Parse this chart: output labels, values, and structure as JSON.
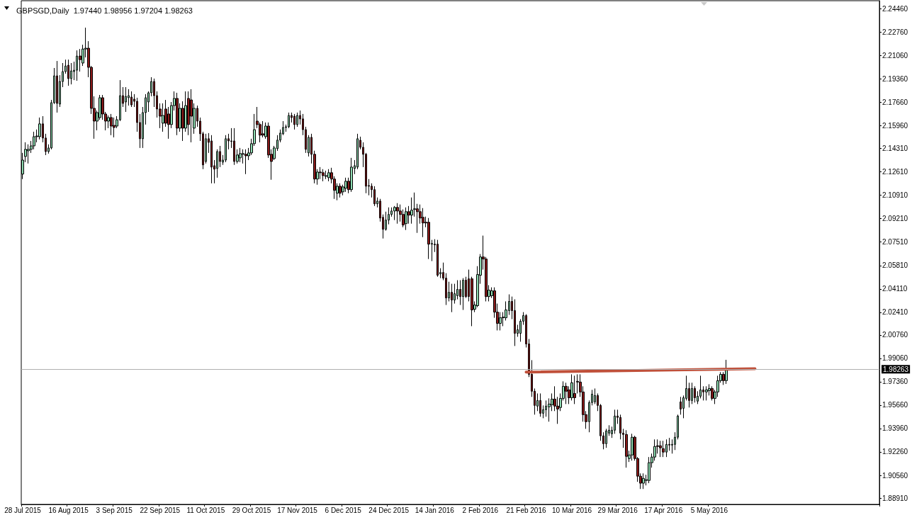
{
  "chart_data": {
    "type": "candlestick",
    "title": "GBPSGD,Daily  1.97440 1.98956 1.97204 1.98263",
    "categories": [
      "28 Jul 2015",
      null,
      null,
      null,
      null,
      null,
      null,
      null,
      null,
      null,
      null,
      null,
      null,
      null,
      null,
      null,
      "16 Aug 2015",
      null,
      null,
      null,
      null,
      null,
      null,
      null,
      null,
      null,
      null,
      null,
      null,
      null,
      null,
      null,
      "3 Sep 2015",
      null,
      null,
      null,
      null,
      null,
      null,
      null,
      null,
      null,
      null,
      null,
      null,
      null,
      null,
      null,
      "22 Sep 2015",
      null,
      null,
      null,
      null,
      null,
      null,
      null,
      null,
      null,
      null,
      null,
      null,
      null,
      null,
      null,
      "11 Oct 2015",
      null,
      null,
      null,
      null,
      null,
      null,
      null,
      null,
      null,
      null,
      null,
      null,
      null,
      null,
      null,
      "29 Oct 2015",
      null,
      null,
      null,
      null,
      null,
      null,
      null,
      null,
      null,
      null,
      null,
      null,
      null,
      null,
      null,
      "17 Nov 2015",
      null,
      null,
      null,
      null,
      null,
      null,
      null,
      null,
      null,
      null,
      null,
      null,
      null,
      null,
      null,
      "6 Dec 2015",
      null,
      null,
      null,
      null,
      null,
      null,
      null,
      null,
      null,
      null,
      null,
      null,
      null,
      null,
      null,
      "24 Dec 2015",
      null,
      null,
      null,
      null,
      null,
      null,
      null,
      null,
      null,
      null,
      null,
      null,
      null,
      null,
      null,
      "14 Jan 2016",
      null,
      null,
      null,
      null,
      null,
      null,
      null,
      null,
      null,
      null,
      null,
      null,
      null,
      null,
      null,
      "2 Feb 2016",
      null,
      null,
      null,
      null,
      null,
      null,
      null,
      null,
      null,
      null,
      null,
      null,
      null,
      null,
      null,
      "21 Feb 2016",
      null,
      null,
      null,
      null,
      null,
      null,
      null,
      null,
      null,
      null,
      null,
      null,
      null,
      null,
      null,
      "10 Mar 2016",
      null,
      null,
      null,
      null,
      null,
      null,
      null,
      null,
      null,
      null,
      null,
      null,
      null,
      null,
      null,
      "29 Mar 2016",
      null,
      null,
      null,
      null,
      null,
      null,
      null,
      null,
      null,
      null,
      null,
      null,
      null,
      null,
      null,
      "17 Apr 2016",
      null,
      null,
      null,
      null,
      null,
      null,
      null,
      null,
      null,
      null,
      null,
      null,
      null,
      null,
      null,
      "5 May 2016",
      null,
      null,
      null,
      null,
      null,
      null,
      null,
      null,
      null,
      null,
      null,
      null,
      null,
      null,
      null,
      null,
      null,
      null,
      null,
      null,
      null,
      null,
      null,
      null,
      null,
      null,
      null,
      null,
      null,
      null,
      null,
      null,
      null,
      null,
      null,
      null,
      null,
      null,
      null,
      null,
      null,
      null,
      null,
      null,
      null,
      null,
      null,
      null,
      null,
      null,
      null,
      null,
      null,
      null,
      null,
      null,
      null,
      null,
      null
    ],
    "series": [
      {
        "type": "candlestick",
        "ohlc": [
          [
            2.1245,
            2.1399,
            2.1209,
            2.1347
          ],
          [
            2.1373,
            2.1476,
            2.1332,
            2.1425
          ],
          [
            2.1414,
            2.1461,
            2.1322,
            2.1425
          ],
          [
            2.1425,
            2.1486,
            2.1399,
            2.145
          ],
          [
            2.145,
            2.1553,
            2.1425,
            2.1517
          ],
          [
            2.1517,
            2.1569,
            2.1476,
            2.1522
          ],
          [
            2.1517,
            2.1656,
            2.1497,
            2.161
          ],
          [
            2.161,
            2.1666,
            2.1476,
            2.1507
          ],
          [
            2.1507,
            2.1538,
            2.1383,
            2.1409
          ],
          [
            2.1409,
            2.1461,
            2.1394,
            2.1435
          ],
          [
            2.1435,
            2.1784,
            2.1425,
            2.1764
          ],
          [
            2.1764,
            2.2016,
            2.1754,
            2.1959
          ],
          [
            2.1959,
            2.2067,
            2.1692,
            2.1759
          ],
          [
            2.1754,
            2.1964,
            2.1733,
            2.1918
          ],
          [
            2.1918,
            2.2052,
            2.1877,
            2.199
          ],
          [
            2.199,
            2.2077,
            2.1975,
            2.2031
          ],
          [
            2.2036,
            2.2077,
            2.1887,
            2.1939
          ],
          [
            2.1939,
            2.2052,
            2.1897,
            2.1995
          ],
          [
            2.199,
            2.2062,
            2.1928,
            2.2
          ],
          [
            2.2,
            2.2144,
            2.1923,
            2.2103
          ],
          [
            2.2103,
            2.2154,
            2.199,
            2.2077
          ],
          [
            2.2052,
            2.2185,
            2.2031,
            2.2154
          ],
          [
            2.2154,
            2.2309,
            2.2093,
            2.216
          ],
          [
            2.216,
            2.2211,
            2.1949,
            2.2021
          ],
          [
            2.2021,
            2.2031,
            2.1682,
            2.1723
          ],
          [
            2.1723,
            2.181,
            2.1502,
            2.163
          ],
          [
            2.163,
            2.1707,
            2.1563,
            2.1692
          ],
          [
            2.1656,
            2.182,
            2.164,
            2.18
          ],
          [
            2.18,
            2.182,
            2.164,
            2.1682
          ],
          [
            2.1682,
            2.1697,
            2.1563,
            2.163
          ],
          [
            2.163,
            2.1671,
            2.1579,
            2.1656
          ],
          [
            2.1656,
            2.1682,
            2.1528,
            2.1594
          ],
          [
            2.1599,
            2.1656,
            2.1512,
            2.1584
          ],
          [
            2.1594,
            2.1666,
            2.1579,
            2.164
          ],
          [
            2.164,
            2.1928,
            2.163,
            2.1815
          ],
          [
            2.1815,
            2.1877,
            2.1733,
            2.1759
          ],
          [
            2.1769,
            2.1877,
            2.1697,
            2.181
          ],
          [
            2.18,
            2.1862,
            2.1743,
            2.1815
          ],
          [
            2.1805,
            2.1846,
            2.1733,
            2.1748
          ],
          [
            2.179,
            2.1826,
            2.1733,
            2.1774
          ],
          [
            2.1774,
            2.18,
            2.1553,
            2.162
          ],
          [
            2.162,
            2.1682,
            2.1435,
            2.1502
          ],
          [
            2.1502,
            2.1733,
            2.1435,
            2.1692
          ],
          [
            2.1692,
            2.1826,
            2.1605,
            2.18
          ],
          [
            2.1769,
            2.1846,
            2.1697,
            2.1836
          ],
          [
            2.1836,
            2.1949,
            2.181,
            2.1918
          ],
          [
            2.1918,
            2.1939,
            2.1733,
            2.1815
          ],
          [
            2.1815,
            2.1846,
            2.1656,
            2.1718
          ],
          [
            2.1718,
            2.1759,
            2.1579,
            2.1666
          ],
          [
            2.1615,
            2.1759,
            2.1553,
            2.1671
          ],
          [
            2.1718,
            2.1784,
            2.1589,
            2.1615
          ],
          [
            2.1682,
            2.1733,
            2.1502,
            2.1605
          ],
          [
            2.1605,
            2.1769,
            2.1579,
            2.1743
          ],
          [
            2.1743,
            2.1846,
            2.1707,
            2.1795
          ],
          [
            2.1795,
            2.1836,
            2.1528,
            2.1579
          ],
          [
            2.1579,
            2.1759,
            2.1553,
            2.1723
          ],
          [
            2.1723,
            2.1774,
            2.1486,
            2.1579
          ],
          [
            2.1579,
            2.1846,
            2.1553,
            2.1743
          ],
          [
            2.1795,
            2.1846,
            2.1528,
            2.1605
          ],
          [
            2.1784,
            2.1862,
            2.1476,
            2.1666
          ],
          [
            2.1579,
            2.1759,
            2.1538,
            2.1723
          ],
          [
            2.1723,
            2.1743,
            2.1589,
            2.163
          ],
          [
            2.163,
            2.1656,
            2.1486,
            2.1538
          ],
          [
            2.1538,
            2.1553,
            2.1281,
            2.1312
          ],
          [
            2.1337,
            2.1538,
            2.1322,
            2.1502
          ],
          [
            2.1502,
            2.1543,
            2.1399,
            2.1476
          ],
          [
            2.1486,
            2.1528,
            2.1178,
            2.1296
          ],
          [
            2.1306,
            2.1347,
            2.1178,
            2.1281
          ],
          [
            2.1286,
            2.1425,
            2.1219,
            2.1409
          ],
          [
            2.1409,
            2.145,
            2.1296,
            2.1337
          ],
          [
            2.1332,
            2.1384,
            2.1312,
            2.1347
          ],
          [
            2.1347,
            2.1528,
            2.1332,
            2.1502
          ],
          [
            2.1502,
            2.1538,
            2.1425,
            2.1486
          ],
          [
            2.1486,
            2.1579,
            2.1435,
            2.1483
          ],
          [
            2.1486,
            2.1579,
            2.1312,
            2.1337
          ],
          [
            2.1337,
            2.1425,
            2.1322,
            2.1384
          ],
          [
            2.1363,
            2.1435,
            2.1332,
            2.1394
          ],
          [
            2.1389,
            2.1425,
            2.1322,
            2.1394
          ],
          [
            2.1389,
            2.1425,
            2.1245,
            2.1378
          ],
          [
            2.1378,
            2.1435,
            2.1347,
            2.1399
          ],
          [
            2.1399,
            2.1502,
            2.1384,
            2.1466
          ],
          [
            2.1466,
            2.1682,
            2.145,
            2.1568
          ],
          [
            2.163,
            2.1733,
            2.1579,
            2.1605
          ],
          [
            2.1605,
            2.162,
            2.1476,
            2.1528
          ],
          [
            2.1538,
            2.163,
            2.1512,
            2.1528
          ],
          [
            2.1517,
            2.162,
            2.1502,
            2.1594
          ],
          [
            2.1594,
            2.162,
            2.1363,
            2.1384
          ],
          [
            2.1389,
            2.1425,
            2.1204,
            2.1337
          ],
          [
            2.1358,
            2.145,
            2.1347,
            2.1435
          ],
          [
            2.143,
            2.1528,
            2.1414,
            2.1492
          ],
          [
            2.1492,
            2.1569,
            2.1476,
            2.1543
          ],
          [
            2.1538,
            2.163,
            2.1528,
            2.1584
          ],
          [
            2.1584,
            2.1605,
            2.1553,
            2.1589
          ],
          [
            2.1589,
            2.1692,
            2.1579,
            2.1671
          ],
          [
            2.1671,
            2.1692,
            2.162,
            2.1656
          ],
          [
            2.1666,
            2.1682,
            2.1569,
            2.1605
          ],
          [
            2.1605,
            2.1692,
            2.1589,
            2.1671
          ],
          [
            2.1671,
            2.1707,
            2.1605,
            2.1646
          ],
          [
            2.1646,
            2.1682,
            2.1528,
            2.1568
          ],
          [
            2.1568,
            2.1589,
            2.1399,
            2.1425
          ],
          [
            2.1399,
            2.1528,
            2.1373,
            2.1512
          ],
          [
            2.1512,
            2.1538,
            2.1322,
            2.1389
          ],
          [
            2.1389,
            2.1415,
            2.1178,
            2.1209
          ],
          [
            2.1209,
            2.1281,
            2.1168,
            2.126
          ],
          [
            2.126,
            2.1296,
            2.1209,
            2.1255
          ],
          [
            2.1255,
            2.1281,
            2.1193,
            2.1234
          ],
          [
            2.1229,
            2.127,
            2.1209,
            2.1234
          ],
          [
            2.1219,
            2.1281,
            2.1193,
            2.1255
          ],
          [
            2.1255,
            2.1291,
            2.1178,
            2.1209
          ],
          [
            2.1209,
            2.1229,
            2.1065,
            2.1127
          ],
          [
            2.1106,
            2.1178,
            2.1055,
            2.1157
          ],
          [
            2.1157,
            2.1178,
            2.1075,
            2.1106
          ],
          [
            2.1116,
            2.1168,
            2.1091,
            2.1152
          ],
          [
            2.1142,
            2.1219,
            2.1116,
            2.1193
          ],
          [
            2.1193,
            2.1219,
            2.1106,
            2.1132
          ],
          [
            2.1132,
            2.1363,
            2.1116,
            2.1296
          ],
          [
            2.1286,
            2.1347,
            2.1245,
            2.1306
          ],
          [
            2.1296,
            2.1538,
            2.1281,
            2.1502
          ],
          [
            2.1491,
            2.1517,
            2.1425,
            2.144
          ],
          [
            2.144,
            2.1476,
            2.1296,
            2.1389
          ],
          [
            2.1389,
            2.1399,
            2.1106,
            2.1157
          ],
          [
            2.1162,
            2.1209,
            2.1091,
            2.1157
          ],
          [
            2.1157,
            2.1178,
            2.1075,
            2.1132
          ],
          [
            2.1132,
            2.1157,
            2.1013,
            2.1029
          ],
          [
            2.1029,
            2.1075,
            2.1003,
            2.1049
          ],
          [
            2.1049,
            2.1065,
            2.09,
            2.0926
          ],
          [
            2.0931,
            2.0952,
            2.0777,
            2.0844
          ],
          [
            2.0844,
            2.0972,
            2.0834,
            2.0911
          ],
          [
            2.0911,
            2.1003,
            2.088,
            2.0952
          ],
          [
            2.0952,
            2.1003,
            2.0936,
            2.0977
          ],
          [
            2.0977,
            2.1013,
            2.0911,
            2.1003
          ],
          [
            2.1003,
            2.1034,
            2.0885,
            2.0977
          ],
          [
            2.0977,
            2.1024,
            2.09,
            2.0952
          ],
          [
            2.0952,
            2.0988,
            2.0859,
            2.0875
          ],
          [
            2.0885,
            2.1003,
            2.0839,
            2.0972
          ],
          [
            2.0972,
            2.1013,
            2.0885,
            2.0947
          ],
          [
            2.0947,
            2.1075,
            2.0885,
            2.0983
          ],
          [
            2.0988,
            2.1111,
            2.0936,
            2.0993
          ],
          [
            2.0993,
            2.1029,
            2.0818,
            2.0972
          ],
          [
            2.0972,
            2.1024,
            2.0885,
            2.0926
          ],
          [
            2.0931,
            2.0998,
            2.0787,
            2.089
          ],
          [
            2.0895,
            2.0936,
            2.0859,
            2.089
          ],
          [
            2.0895,
            2.0926,
            2.0628,
            2.0736
          ],
          [
            2.0736,
            2.0767,
            2.0613,
            2.0741
          ],
          [
            2.0736,
            2.0772,
            2.0679,
            2.0731
          ],
          [
            2.0736,
            2.0767,
            2.0499,
            2.051
          ],
          [
            2.052,
            2.0561,
            2.0489,
            2.053
          ],
          [
            2.053,
            2.0602,
            2.0474,
            2.0489
          ],
          [
            2.0489,
            2.0525,
            2.0294,
            2.0345
          ],
          [
            2.0345,
            2.0463,
            2.032,
            2.0386
          ],
          [
            2.0386,
            2.0448,
            2.0242,
            2.033
          ],
          [
            2.033,
            2.0448,
            2.0304,
            2.0376
          ],
          [
            2.0361,
            2.0474,
            2.0335,
            2.0407
          ],
          [
            2.0407,
            2.0474,
            2.0294,
            2.0355
          ],
          [
            2.0355,
            2.0489,
            2.0258,
            2.0474
          ],
          [
            2.0474,
            2.0499,
            2.0345,
            2.0355
          ],
          [
            2.0484,
            2.0551,
            2.032,
            2.0355
          ],
          [
            2.0484,
            2.0499,
            2.014,
            2.0258
          ],
          [
            2.0263,
            2.032,
            2.0242,
            2.0294
          ],
          [
            2.0289,
            2.0576,
            2.0278,
            2.0515
          ],
          [
            2.051,
            2.0664,
            2.0448,
            2.0643
          ],
          [
            2.0643,
            2.0798,
            2.0551,
            2.0628
          ],
          [
            2.0628,
            2.0643,
            2.032,
            2.0355
          ],
          [
            2.0355,
            2.0438,
            2.032,
            2.0402
          ],
          [
            2.0361,
            2.0422,
            2.0345,
            2.0397
          ],
          [
            2.0397,
            2.0422,
            2.0201,
            2.0242
          ],
          [
            2.0242,
            2.0304,
            2.0109,
            2.016
          ],
          [
            2.016,
            2.0242,
            2.0109,
            2.0201
          ],
          [
            2.0201,
            2.0242,
            2.014,
            2.0206
          ],
          [
            2.0201,
            2.032,
            2.0181,
            2.0258
          ],
          [
            2.0253,
            2.0371,
            2.0222,
            2.032
          ],
          [
            2.032,
            2.0355,
            2.0191,
            2.0253
          ],
          [
            2.0253,
            2.0335,
            1.9996,
            2.0088
          ],
          [
            2.0088,
            2.015,
            2.0063,
            2.0114
          ],
          [
            2.0088,
            2.0191,
            2.0027,
            2.0176
          ],
          [
            2.0176,
            2.0242,
            2.015,
            2.0217
          ],
          [
            2.0217,
            2.0227,
            1.9985,
            2.0011
          ],
          [
            2.0011,
            2.0047,
            1.977,
            1.979
          ],
          [
            1.979,
            1.9893,
            1.9626,
            1.9667
          ],
          [
            1.9667,
            1.9687,
            1.9497,
            1.9564
          ],
          [
            1.9559,
            1.9651,
            1.9523,
            1.96
          ],
          [
            1.96,
            1.9651,
            1.9482,
            1.9507
          ],
          [
            1.9507,
            1.9564,
            1.9471,
            1.9533
          ],
          [
            1.9533,
            1.96,
            1.9482,
            1.9559
          ],
          [
            1.9554,
            1.9615,
            1.9446,
            1.9574
          ],
          [
            1.9569,
            1.9651,
            1.9523,
            1.961
          ],
          [
            1.961,
            1.9703,
            1.9523,
            1.9559
          ],
          [
            1.9559,
            1.9626,
            1.943,
            1.9538
          ],
          [
            1.9549,
            1.9651,
            1.9523,
            1.9615
          ],
          [
            1.9615,
            1.9739,
            1.96,
            1.9703
          ],
          [
            1.9703,
            1.9729,
            1.9574,
            1.9667
          ],
          [
            1.9677,
            1.9703,
            1.9574,
            1.962
          ],
          [
            1.962,
            1.979,
            1.96,
            1.9729
          ],
          [
            1.9651,
            1.978,
            1.9574,
            1.962
          ],
          [
            1.9739,
            1.979,
            1.9651,
            1.9734
          ],
          [
            1.9734,
            1.979,
            1.9626,
            1.9662
          ],
          [
            1.9662,
            1.9703,
            1.9446,
            1.9497
          ],
          [
            1.9497,
            1.9523,
            1.9394,
            1.9446
          ],
          [
            1.9446,
            1.96,
            1.9369,
            1.9585
          ],
          [
            1.9585,
            1.9677,
            1.9564,
            1.9646
          ],
          [
            1.959,
            1.9687,
            1.9574,
            1.9636
          ],
          [
            1.9636,
            1.9651,
            1.9523,
            1.9564
          ],
          [
            1.9564,
            1.9574,
            1.9307,
            1.9343
          ],
          [
            1.9343,
            1.9369,
            1.9245,
            1.9286
          ],
          [
            1.9286,
            1.9394,
            1.9256,
            1.9379
          ],
          [
            1.9363,
            1.942,
            1.9343,
            1.9384
          ],
          [
            1.9358,
            1.941,
            1.9328,
            1.9384
          ],
          [
            1.9384,
            1.9533,
            1.9358,
            1.9487
          ],
          [
            1.9487,
            1.9533,
            1.943,
            1.9477
          ],
          [
            1.9477,
            1.9497,
            1.9317,
            1.9363
          ],
          [
            1.9363,
            1.9394,
            1.9256,
            1.9353
          ],
          [
            1.9353,
            1.9384,
            1.9112,
            1.9194
          ],
          [
            1.9178,
            1.9235,
            1.9153,
            1.9204
          ],
          [
            1.9204,
            1.9358,
            1.9163,
            1.9333
          ],
          [
            1.9333,
            1.9343,
            1.9163,
            1.9178
          ],
          [
            1.9178,
            1.9189,
            1.9009,
            1.905
          ],
          [
            1.905,
            1.907,
            1.8957,
            1.8999
          ],
          [
            1.8999,
            1.907,
            1.8957,
            1.9034
          ],
          [
            1.9019,
            1.906,
            1.8983,
            1.9024
          ],
          [
            1.9019,
            1.9189,
            1.8999,
            1.9148
          ],
          [
            1.9148,
            1.9214,
            1.9112,
            1.9189
          ],
          [
            1.9189,
            1.9317,
            1.9163,
            1.9266
          ],
          [
            1.9271,
            1.9317,
            1.9214,
            1.9266
          ],
          [
            1.9271,
            1.9307,
            1.9189,
            1.9256
          ],
          [
            1.925,
            1.9307,
            1.9189,
            1.9225
          ],
          [
            1.9225,
            1.9317,
            1.9189,
            1.9281
          ],
          [
            1.9281,
            1.9328,
            1.9235,
            1.9276
          ],
          [
            1.9276,
            1.9317,
            1.9214,
            1.9281
          ],
          [
            1.9281,
            1.9369,
            1.924,
            1.9333
          ],
          [
            1.9333,
            1.9497,
            1.9317,
            1.9487
          ],
          [
            1.959,
            1.9626,
            1.9497,
            1.9538
          ],
          [
            1.9543,
            1.9636,
            1.9471,
            1.962
          ],
          [
            1.9615,
            1.978,
            1.96,
            1.9687
          ],
          [
            1.9687,
            1.9729,
            1.9549,
            1.96
          ],
          [
            1.96,
            1.9729,
            1.9574,
            1.9687
          ],
          [
            1.9687,
            1.9703,
            1.9585,
            1.962
          ],
          [
            1.9595,
            1.9667,
            1.9574,
            1.9631
          ],
          [
            1.9631,
            1.978,
            1.9615,
            1.9677
          ],
          [
            1.9677,
            1.9703,
            1.96,
            1.9662
          ],
          [
            1.9662,
            1.9703,
            1.96,
            1.9677
          ],
          [
            1.9672,
            1.9718,
            1.9636,
            1.9687
          ],
          [
            1.9687,
            1.9703,
            1.96,
            1.9615
          ],
          [
            1.9615,
            1.9677,
            1.9574,
            1.9662
          ],
          [
            1.9662,
            1.978,
            1.9626,
            1.9744
          ],
          [
            1.9744,
            1.9806,
            1.9729,
            1.979
          ],
          [
            1.979,
            1.9806,
            1.9713,
            1.9744
          ],
          [
            1.9744,
            1.98956,
            1.97204,
            1.98263
          ],
          null,
          null,
          null,
          null,
          null,
          null,
          null,
          null,
          null,
          null,
          null,
          null,
          null,
          null,
          null,
          null,
          null,
          null,
          null,
          null,
          null,
          null,
          null,
          null,
          null,
          null,
          null,
          null,
          null,
          null,
          null,
          null,
          null,
          null,
          null,
          null,
          null,
          null,
          null,
          null,
          null,
          null,
          null,
          null,
          null,
          null,
          null,
          null,
          null,
          null,
          null,
          null,
          null
        ]
      },
      {
        "type": "line",
        "color": "#c0503a",
        "values": [
          null,
          null,
          null,
          null,
          null,
          null,
          null,
          null,
          null,
          null,
          null,
          null,
          null,
          null,
          null,
          null,
          null,
          null,
          null,
          null,
          null,
          null,
          null,
          null,
          null,
          null,
          null,
          null,
          null,
          null,
          null,
          null,
          null,
          null,
          null,
          null,
          null,
          null,
          null,
          null,
          null,
          null,
          null,
          null,
          null,
          null,
          null,
          null,
          null,
          null,
          null,
          null,
          null,
          null,
          null,
          null,
          null,
          null,
          null,
          null,
          null,
          null,
          null,
          null,
          null,
          null,
          null,
          null,
          null,
          null,
          null,
          null,
          null,
          null,
          null,
          null,
          null,
          null,
          null,
          null,
          null,
          null,
          null,
          null,
          null,
          null,
          null,
          null,
          null,
          null,
          null,
          null,
          null,
          null,
          null,
          null,
          null,
          null,
          null,
          null,
          null,
          null,
          null,
          null,
          null,
          null,
          null,
          null,
          null,
          null,
          null,
          null,
          null,
          null,
          null,
          null,
          null,
          null,
          null,
          null,
          null,
          null,
          null,
          null,
          null,
          null,
          null,
          null,
          null,
          null,
          null,
          null,
          null,
          null,
          null,
          null,
          null,
          null,
          null,
          null,
          null,
          null,
          null,
          null,
          null,
          null,
          null,
          null,
          null,
          null,
          null,
          null,
          null,
          null,
          null,
          null,
          null,
          null,
          null,
          null,
          null,
          null,
          null,
          null,
          null,
          null,
          null,
          null,
          null,
          null,
          null,
          null,
          null,
          null,
          null,
          null,
          1.9806,
          null,
          null,
          null,
          null,
          null,
          null,
          null,
          null,
          null,
          null,
          null,
          null,
          null,
          null,
          null,
          null,
          null,
          null,
          null,
          null,
          null,
          null,
          null,
          null,
          null,
          null,
          null,
          null,
          null,
          null,
          null,
          null,
          null,
          null,
          null,
          null,
          null,
          null,
          null,
          null,
          null,
          null,
          null,
          null,
          null,
          null,
          null,
          null,
          null,
          null,
          null,
          null,
          null,
          null,
          null,
          null,
          null,
          null,
          null,
          null,
          null,
          null,
          null,
          null,
          null,
          null,
          null,
          null,
          null,
          null,
          null,
          null,
          null,
          null,
          null,
          null,
          null,
          null,
          null,
          1.9831,
          null,
          null,
          null,
          null,
          null,
          null,
          null,
          null,
          null,
          null,
          null,
          null,
          null,
          null,
          null,
          null,
          null,
          null,
          null,
          null,
          null,
          null,
          null,
          null,
          null,
          null,
          null,
          null,
          null,
          null,
          null,
          null,
          null,
          null,
          null,
          null,
          null,
          null,
          null,
          null,
          null,
          null,
          null
        ]
      }
    ],
    "ylim": [
      1.8845,
      2.2505
    ],
    "yticks": [
      {
        "value": 1.8891,
        "label": "1.88910"
      },
      {
        "value": 1.9056,
        "label": "1.90560"
      },
      {
        "value": 1.9226,
        "label": "1.92260"
      },
      {
        "value": 1.9396,
        "label": "1.93960"
      },
      {
        "value": 1.9566,
        "label": "1.95660"
      },
      {
        "value": 1.9736,
        "label": "1.97360"
      },
      {
        "value": 1.9906,
        "label": "1.99060"
      },
      {
        "value": 2.0076,
        "label": "2.00760"
      },
      {
        "value": 2.0241,
        "label": "2.02410"
      },
      {
        "value": 2.0411,
        "label": "2.04110"
      },
      {
        "value": 2.0581,
        "label": "2.05810"
      },
      {
        "value": 2.0751,
        "label": "2.07510"
      },
      {
        "value": 2.0921,
        "label": "2.09210"
      },
      {
        "value": 2.1091,
        "label": "2.10910"
      },
      {
        "value": 2.1261,
        "label": "2.12610"
      },
      {
        "value": 2.1431,
        "label": "2.14310"
      },
      {
        "value": 2.1596,
        "label": "2.15960"
      },
      {
        "value": 2.1766,
        "label": "2.17660"
      },
      {
        "value": 2.1936,
        "label": "2.19360"
      },
      {
        "value": 2.2106,
        "label": "2.21060"
      },
      {
        "value": 2.2276,
        "label": "2.22760"
      },
      {
        "value": 2.2446,
        "label": "2.24460"
      }
    ],
    "ref_lines": [
      {
        "axis": "y",
        "value": 1.98263,
        "label": "1.98263",
        "color": "#b0b0b0"
      }
    ]
  }
}
